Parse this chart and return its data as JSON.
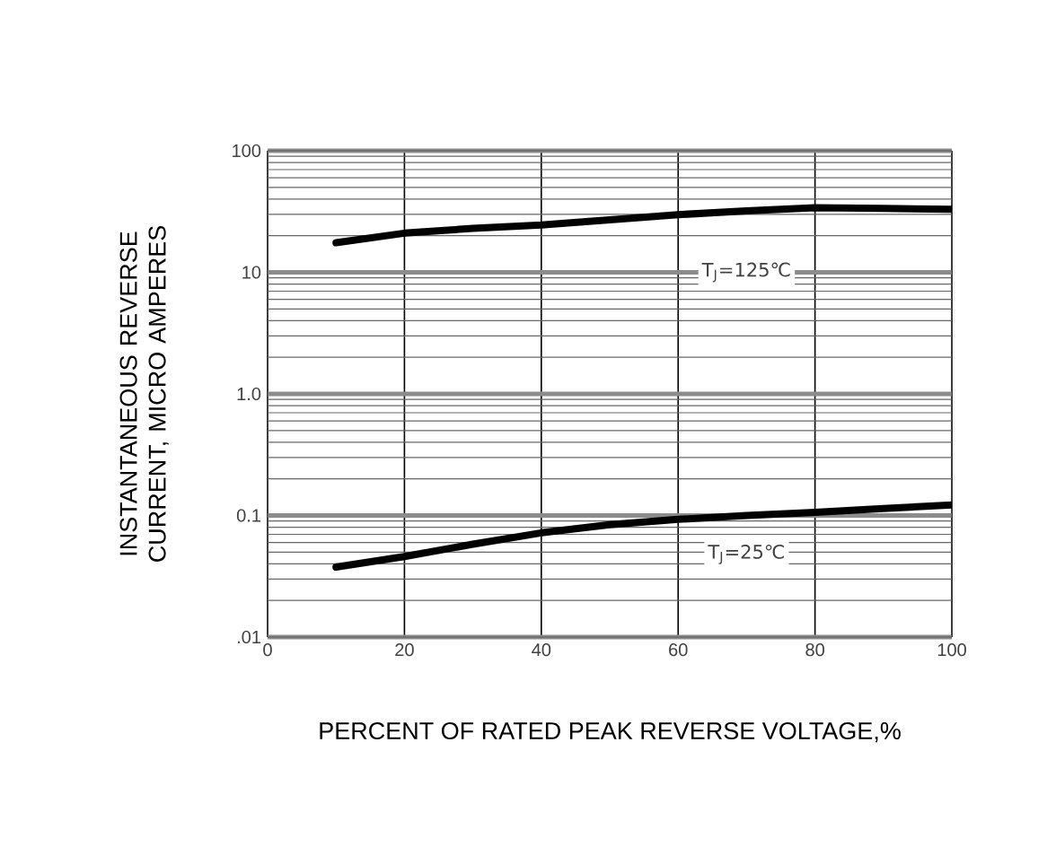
{
  "chart_data": {
    "type": "line",
    "xlabel": "PERCENT OF RATED PEAK REVERSE VOLTAGE,%",
    "ylabel": "INSTANTANEOUS REVERSE CURRENT, MICRO AMPERES",
    "series": [
      {
        "color": "#000000",
        "x": [
          10,
          20,
          30,
          40,
          50,
          60,
          70,
          80,
          90,
          100
        ],
        "values": [
          17.5,
          21,
          23,
          24.5,
          27,
          29.8,
          32,
          34,
          33.5,
          33
        ]
      },
      {
        "color": "#000000",
        "x": [
          10,
          20,
          30,
          40,
          50,
          60,
          70,
          80,
          90,
          100
        ],
        "values": [
          0.0376,
          0.046,
          0.058,
          0.072,
          0.084,
          0.093,
          0.1,
          0.106,
          0.114,
          0.122
        ]
      }
    ],
    "annotations": [
      "T$_{J}$=125℃",
      "T$_{J}$=25℃"
    ],
    "xlim": [
      0,
      100
    ],
    "xticks": [
      0,
      20,
      40,
      60,
      80,
      100
    ],
    "ylim": [
      0.01,
      100
    ],
    "yticks": [
      {
        "value": 0.01,
        "label": ".01"
      },
      {
        "value": 0.1,
        "label": "0.1"
      },
      {
        "value": 1,
        "label": "1.0"
      },
      100,
      10
    ],
    "log": "y",
    "grid": true,
    "marker": "none",
    "line_style": "solid"
  }
}
